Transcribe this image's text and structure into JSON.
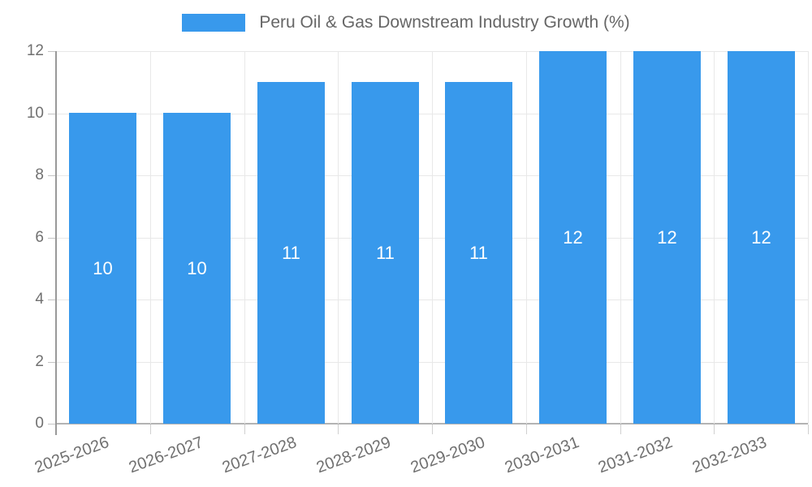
{
  "chart_data": {
    "type": "bar",
    "title": "Peru Oil & Gas Downstream Industry Growth (%)",
    "categories": [
      "2025-2026",
      "2026-2027",
      "2027-2028",
      "2028-2029",
      "2029-2030",
      "2030-2031",
      "2031-2032",
      "2032-2033"
    ],
    "values": [
      10,
      10,
      11,
      11,
      11,
      12,
      12,
      12
    ],
    "value_labels": [
      "10",
      "10",
      "11",
      "11",
      "11",
      "12",
      "12",
      "12"
    ],
    "xlabel": "",
    "ylabel": "",
    "ylim": [
      0,
      12
    ],
    "yticks": [
      0,
      2,
      4,
      6,
      8,
      10,
      12
    ],
    "ytick_labels": [
      "0",
      "2",
      "4",
      "6",
      "8",
      "10",
      "12"
    ],
    "grid": true,
    "legend_position": "top",
    "bar_color": "#3899ec",
    "value_label_color": "#ffffff",
    "tick_label_color": "#707070",
    "title_color": "#666666"
  }
}
